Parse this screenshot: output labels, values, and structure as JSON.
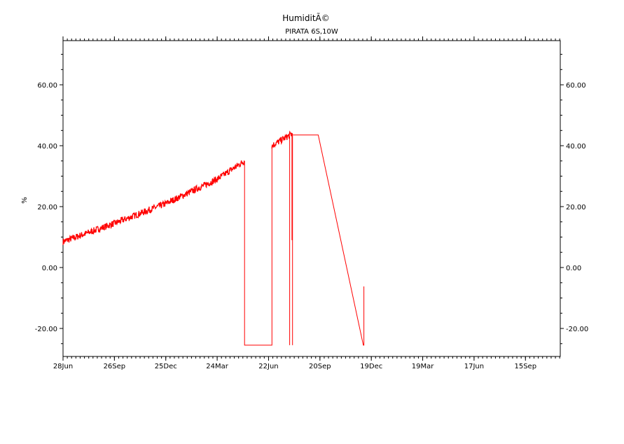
{
  "chart_data": {
    "type": "line",
    "title": "HumiditÃ©",
    "subtitle": "PIRATA 6S,10W",
    "xlabel": "",
    "ylabel": "%",
    "ylim": [
      -29.2,
      74.5
    ],
    "xlim": [
      "2007-06-28",
      "2009-11-15"
    ],
    "grid": false,
    "line_color": "#ff0000",
    "yticks": [
      -20,
      0,
      20,
      40,
      60
    ],
    "ytick_labels": [
      "-20.00",
      "0.00",
      "20.00",
      "40.00",
      "60.00"
    ],
    "xticks": [
      "2007-06-28",
      "2007-09-26",
      "2007-12-25",
      "2008-03-24",
      "2008-06-22",
      "2008-09-20",
      "2008-12-19",
      "2009-03-19",
      "2009-06-17",
      "2009-09-15"
    ],
    "xtick_labels": [
      "28Jun",
      "26Sep",
      "25Dec",
      "24Mar",
      "22Jun",
      "20Sep",
      "19Dec",
      "19Mar",
      "17Jun",
      "15Sep"
    ],
    "series": [
      {
        "noisy_segments": [
          [
            [
              "2007-06-28",
              8.5
            ],
            [
              "2007-09-26",
              14.5
            ],
            [
              "2007-12-25",
              21
            ],
            [
              "2008-03-24",
              29
            ],
            [
              "2008-05-11",
              35
            ]
          ],
          [
            [
              "2008-06-28",
              40
            ],
            [
              "2008-08-03",
              44
            ]
          ]
        ],
        "lines": [
          [
            [
              "2008-05-11",
              35
            ],
            [
              "2008-05-11",
              -25.5
            ],
            [
              "2008-06-28",
              -25.5
            ],
            [
              "2008-06-28",
              40
            ]
          ],
          [
            [
              "2008-07-29",
              43
            ],
            [
              "2008-07-29",
              -25.5
            ]
          ],
          [
            [
              "2008-08-02",
              44
            ],
            [
              "2008-08-02",
              9
            ]
          ],
          [
            [
              "2008-08-03",
              44
            ],
            [
              "2008-08-03",
              -25.5
            ]
          ],
          [
            [
              "2008-08-04",
              43.5
            ],
            [
              "2008-09-17",
              43.5
            ],
            [
              "2008-12-05",
              -25.5
            ],
            [
              "2008-12-06",
              -25.5
            ],
            [
              "2008-12-06",
              -6.2
            ]
          ]
        ]
      }
    ]
  }
}
